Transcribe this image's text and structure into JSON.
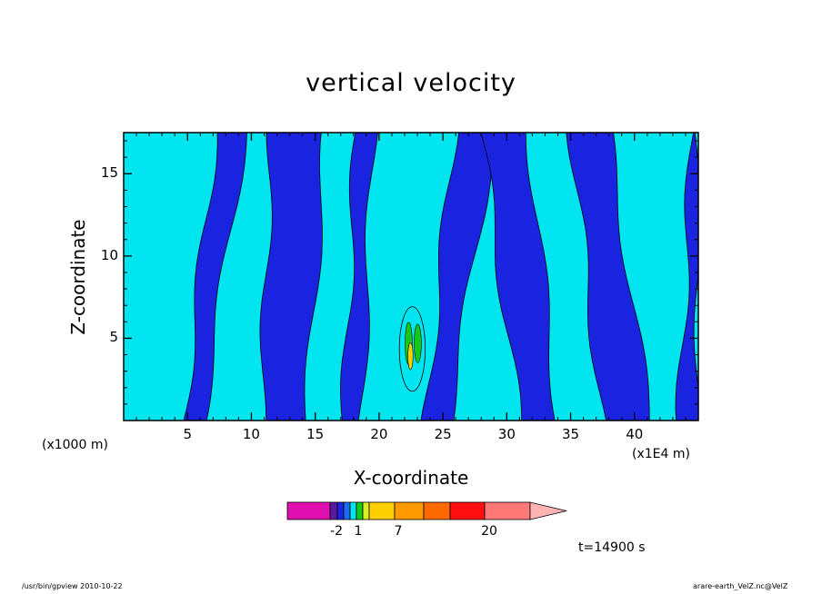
{
  "chart_data": {
    "type": "heatmap",
    "subtype": "filled contour",
    "title": "vertical velocity",
    "xlabel": "X-coordinate",
    "ylabel": "Z-coordinate",
    "x_unit_label": "(x1E4 m)",
    "y_unit_label": "(x1000 m)",
    "xlim": [
      0,
      45
    ],
    "ylim": [
      0,
      17.5
    ],
    "x_ticks": [
      5,
      10,
      15,
      20,
      25,
      30,
      35,
      40
    ],
    "y_ticks": [
      5,
      10,
      15
    ],
    "dominant_levels": [
      {
        "range": "below -2",
        "color": "#1a24e0"
      },
      {
        "range": "-2 to 1",
        "color": "#00e5ef"
      }
    ],
    "downdraft_bands": [
      {
        "x_bottom": [
          4.7,
          6.2
        ],
        "x_top": [
          7.2,
          9.5
        ]
      },
      {
        "x_bottom": [
          10.8,
          14.3
        ],
        "x_top": [
          11.5,
          15.8
        ]
      },
      {
        "x_bottom": [
          17.2,
          18.6
        ],
        "x_top": [
          18.2,
          19.6
        ]
      },
      {
        "x_bottom": [
          23.6,
          25.5
        ],
        "x_top": [
          25.9,
          29.0
        ]
      },
      {
        "x_bottom": [
          31.0,
          34.0
        ],
        "x_top": [
          28.0,
          31.7
        ]
      },
      {
        "x_bottom": [
          37.5,
          41.2
        ],
        "x_top": [
          35.0,
          38.0
        ]
      },
      {
        "x_bottom": [
          43.5,
          45.0
        ],
        "x_top": [
          44.5,
          45.0
        ]
      }
    ],
    "updraft_core": {
      "x": [
        21.8,
        23.4
      ],
      "z": [
        2.0,
        6.7
      ],
      "max_level": 7
    },
    "colorbar": {
      "colors": [
        "#e010b0",
        "#5a1aa0",
        "#1a24e0",
        "#1c6cf0",
        "#00e5ef",
        "#18c818",
        "#d8f020",
        "#ffd000",
        "#ff9a00",
        "#ff6a00",
        "#ff1010",
        "#ff7878",
        "#ffb4b4"
      ],
      "labels": [
        "-2",
        "1",
        "7",
        "20"
      ]
    },
    "annotation": "t=14900 s"
  },
  "footer": {
    "left": "/usr/bin/gpview   2010-10-22",
    "right": "arare-earth_VelZ.nc@VelZ"
  }
}
